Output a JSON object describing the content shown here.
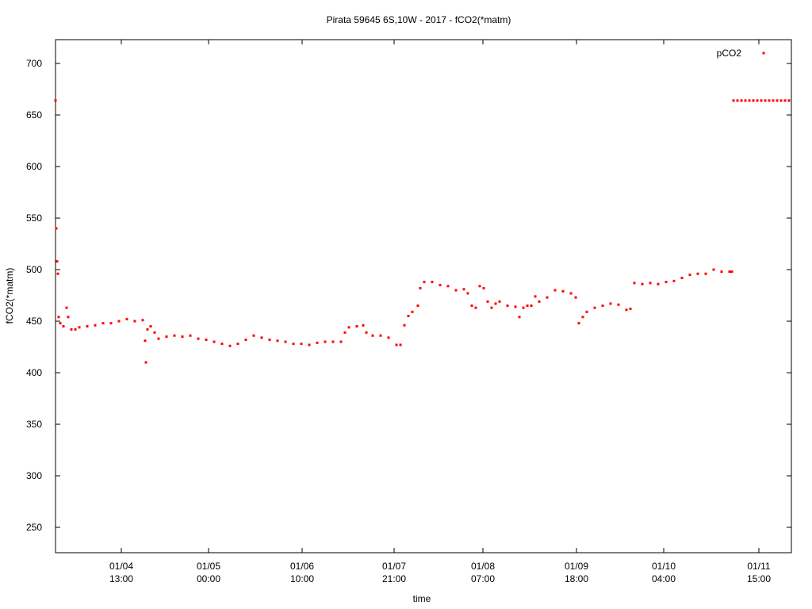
{
  "chart_data": {
    "type": "scatter",
    "title": "Pirata 59645 6S,10W - 2017 - fCO2(*matm)",
    "x_label": "time",
    "y_label": "fCO2(*matm)",
    "legend": "top right",
    "xlim": [
      0,
      92.8
    ],
    "ylim": [
      225.4,
      723.1
    ],
    "xticks": [
      {
        "value": 8.3,
        "label": "01/04\n13:00"
      },
      {
        "value": 19.3,
        "label": "01/05\n00:00"
      },
      {
        "value": 31.1,
        "label": "01/06\n10:00"
      },
      {
        "value": 42.7,
        "label": "01/07\n21:00"
      },
      {
        "value": 53.9,
        "label": "01/08\n07:00"
      },
      {
        "value": 65.7,
        "label": "01/09\n18:00"
      },
      {
        "value": 76.7,
        "label": "01/10\n04:00"
      },
      {
        "value": 88.7,
        "label": "01/11\n15:00"
      }
    ],
    "yticks": [
      250,
      300,
      350,
      400,
      450,
      500,
      550,
      600,
      650,
      700
    ],
    "series": [
      {
        "name": "pCO2",
        "color": "#ff0000",
        "x": [
          0,
          0.1,
          0.2,
          0.3,
          0.4,
          0.6,
          1.0,
          1.4,
          1.6,
          2.0,
          2.5,
          3,
          4,
          5,
          6,
          7,
          8,
          9,
          10,
          11,
          11.3,
          11.4,
          11.6,
          12,
          12.5,
          13,
          14,
          15,
          16,
          17,
          18,
          19,
          20,
          21,
          22,
          23,
          24,
          25,
          26,
          27,
          28,
          29,
          30,
          31,
          32,
          33,
          34,
          35,
          36,
          36.5,
          37,
          38,
          38.8,
          39.2,
          40,
          41,
          42,
          43,
          43.5,
          44,
          44.5,
          45,
          45.7,
          46,
          46.5,
          47.5,
          48.5,
          49.5,
          50.5,
          51.5,
          52,
          52.5,
          53,
          53.5,
          54,
          54.5,
          55,
          55.5,
          56,
          57,
          58,
          58.5,
          59,
          59.5,
          60,
          60.5,
          61,
          62,
          63,
          64,
          65,
          65.6,
          66,
          66.5,
          67,
          68,
          69,
          70,
          71,
          72,
          72.5,
          73,
          74,
          75,
          76,
          77,
          78,
          79,
          80,
          81,
          82,
          83,
          84,
          85,
          85.3,
          85.5,
          86,
          86.5,
          87,
          87.5,
          88,
          88.5,
          89,
          89.5,
          90,
          90.5,
          91,
          91.5,
          92,
          92.5
        ],
        "values": [
          664,
          540,
          508,
          496,
          454,
          448,
          445,
          463,
          454,
          442,
          442,
          444,
          445,
          446,
          448,
          448,
          450,
          452,
          450,
          451,
          431,
          410,
          442,
          445,
          439,
          433,
          435,
          436,
          435,
          436,
          433,
          432,
          430,
          428,
          426,
          428,
          432,
          436,
          434,
          432,
          431,
          430,
          428,
          428,
          427,
          429,
          430,
          430,
          430,
          439,
          444,
          445,
          446,
          439,
          436,
          436,
          434,
          427,
          427,
          446,
          455,
          459,
          465,
          482,
          488,
          488,
          485,
          484,
          480,
          481,
          477,
          465,
          463,
          484,
          482,
          469,
          463,
          467,
          469,
          465,
          464,
          454,
          463,
          465,
          465,
          474,
          469,
          473,
          480,
          479,
          477,
          473,
          448,
          454,
          459,
          463,
          465,
          467,
          466,
          461,
          462,
          487,
          486,
          487,
          486,
          488,
          489,
          492,
          495,
          496,
          496,
          500,
          498,
          498,
          498,
          664,
          664,
          664,
          664,
          664,
          664,
          664,
          664,
          664,
          664,
          664,
          664,
          664,
          664,
          664
        ]
      }
    ]
  }
}
